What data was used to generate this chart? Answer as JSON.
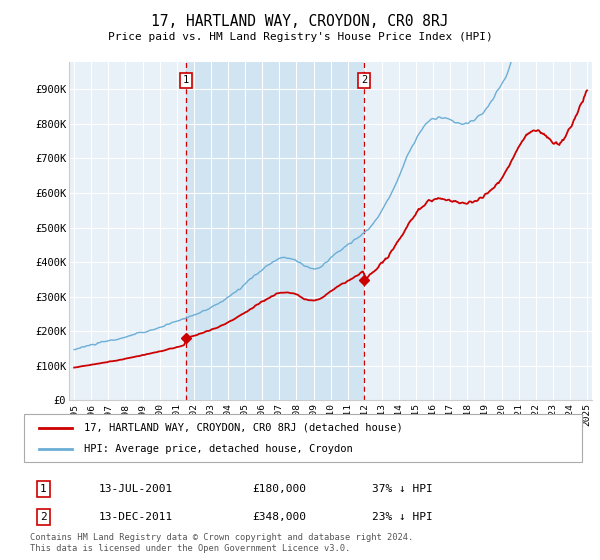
{
  "title": "17, HARTLAND WAY, CROYDON, CR0 8RJ",
  "subtitle": "Price paid vs. HM Land Registry's House Price Index (HPI)",
  "background_color": "#ffffff",
  "plot_bg_color": "#e8f0f8",
  "highlight_color": "#d0e4f5",
  "ylim": [
    0,
    980000
  ],
  "yticks": [
    0,
    100000,
    200000,
    300000,
    400000,
    500000,
    600000,
    700000,
    800000,
    900000
  ],
  "ytick_labels": [
    "£0",
    "£100K",
    "£200K",
    "£300K",
    "£400K",
    "£500K",
    "£600K",
    "£700K",
    "£800K",
    "£900K"
  ],
  "sale1_date": 2001.55,
  "sale1_price": 180000,
  "sale2_date": 2011.96,
  "sale2_price": 348000,
  "legend_line1": "17, HARTLAND WAY, CROYDON, CR0 8RJ (detached house)",
  "legend_line2": "HPI: Average price, detached house, Croydon",
  "table_row1": [
    "1",
    "13-JUL-2001",
    "£180,000",
    "37% ↓ HPI"
  ],
  "table_row2": [
    "2",
    "13-DEC-2011",
    "£348,000",
    "23% ↓ HPI"
  ],
  "footer": "Contains HM Land Registry data © Crown copyright and database right 2024.\nThis data is licensed under the Open Government Licence v3.0.",
  "hpi_color": "#6baed6",
  "sale_color": "#cc0000",
  "vline_color": "#cc0000",
  "grid_color": "#ffffff",
  "xlim_left": 1994.7,
  "xlim_right": 2025.3
}
